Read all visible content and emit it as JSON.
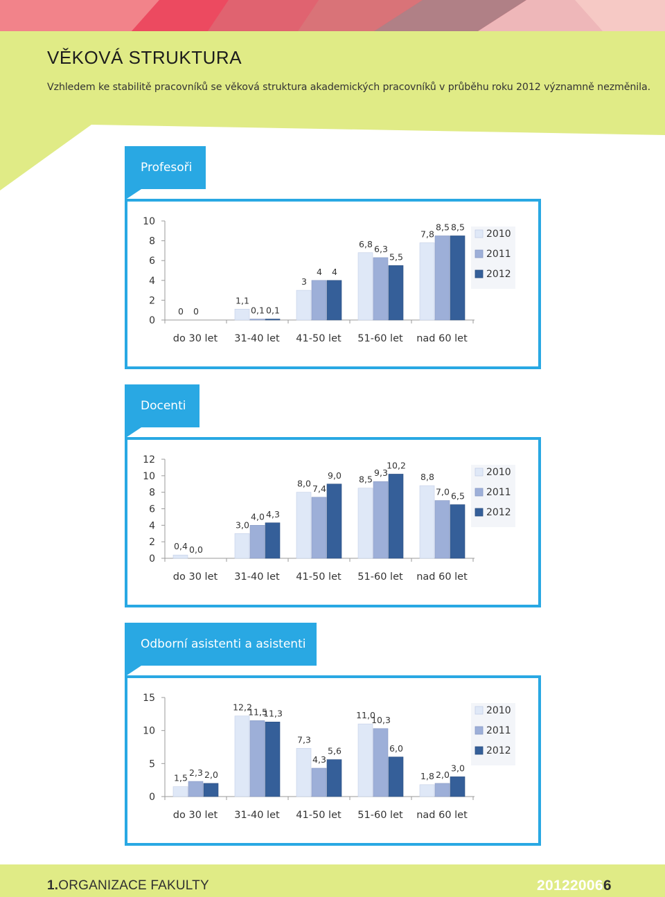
{
  "page": {
    "title": "VĚKOVÁ STRUKTURA",
    "intro": "Vzhledem ke stabilitě pracovníků se věková struktura akademických pracovníků v průběhu roku 2012 významně nezměnila."
  },
  "colors": {
    "accent": "#29a8e3",
    "band": "#e0eb86",
    "series_2010": "#dfe8f7",
    "series_2011": "#9dafd8",
    "series_2012": "#355f99"
  },
  "footer": {
    "chapter_number": "1.",
    "chapter_name": "ORGANIZACE FAKULTY",
    "year_text": "201220",
    "page_fragment": "06",
    "page_number": "6"
  },
  "chart_data": [
    {
      "type": "bar",
      "title": "Profesoři",
      "categories": [
        "do 30 let",
        "31-40 let",
        "41-50 let",
        "51-60 let",
        "nad 60 let"
      ],
      "series": [
        {
          "name": "2010",
          "values": [
            0,
            1.1,
            3,
            6.8,
            7.8
          ],
          "labels": [
            "0",
            "1,1",
            "3",
            "6,8",
            "7,8"
          ]
        },
        {
          "name": "2011",
          "values": [
            0,
            0.1,
            4,
            6.3,
            8.5
          ],
          "labels": [
            "0",
            "0,1",
            "4",
            "6,3",
            "8,5"
          ]
        },
        {
          "name": "2012",
          "values": [
            null,
            0.1,
            4,
            5.5,
            8.5
          ],
          "labels": [
            "",
            "0,1",
            "4",
            "5,5",
            "8,5"
          ]
        }
      ],
      "yticks": [
        "0",
        "2",
        "4",
        "6",
        "8",
        "10"
      ],
      "ylim": [
        0,
        10
      ],
      "legend": "right"
    },
    {
      "type": "bar",
      "title": "Docenti",
      "categories": [
        "do 30 let",
        "31-40 let",
        "41-50 let",
        "51-60 let",
        "nad 60 let"
      ],
      "series": [
        {
          "name": "2010",
          "values": [
            0.4,
            3.0,
            8.0,
            8.5,
            8.8
          ],
          "labels": [
            "0,4",
            "3,0",
            "8,0",
            "8,5",
            "8,8"
          ]
        },
        {
          "name": "2011",
          "values": [
            0.0,
            4.0,
            7.4,
            9.3,
            7.0
          ],
          "labels": [
            "0,0",
            "4,0",
            "7,4",
            "9,3",
            "7,0"
          ]
        },
        {
          "name": "2012",
          "values": [
            null,
            4.3,
            9.0,
            10.2,
            6.5
          ],
          "labels": [
            "",
            "4,3",
            "9,0",
            "10,2",
            "6,5"
          ]
        }
      ],
      "yticks": [
        "0",
        "2",
        "4",
        "6",
        "8",
        "10",
        "12"
      ],
      "ylim": [
        0,
        12
      ],
      "legend": "right"
    },
    {
      "type": "bar",
      "title": "Odborní asistenti a asistenti",
      "categories": [
        "do 30 let",
        "31-40 let",
        "41-50 let",
        "51-60 let",
        "nad 60 let"
      ],
      "series": [
        {
          "name": "2010",
          "values": [
            1.5,
            12.2,
            7.3,
            11.0,
            1.8
          ],
          "labels": [
            "1,5",
            "12,2",
            "7,3",
            "11,0",
            "1,8"
          ]
        },
        {
          "name": "2011",
          "values": [
            2.3,
            11.5,
            4.3,
            10.3,
            2.0
          ],
          "labels": [
            "2,3",
            "11,5",
            "4,3",
            "10,3",
            "2,0"
          ]
        },
        {
          "name": "2012",
          "values": [
            2.0,
            11.3,
            5.6,
            6.0,
            3.0
          ],
          "labels": [
            "2,0",
            "11,3",
            "5,6",
            "6,0",
            "3,0"
          ]
        }
      ],
      "yticks": [
        "0",
        "5",
        "10",
        "15"
      ],
      "ylim": [
        0,
        15
      ],
      "legend": "right"
    }
  ]
}
